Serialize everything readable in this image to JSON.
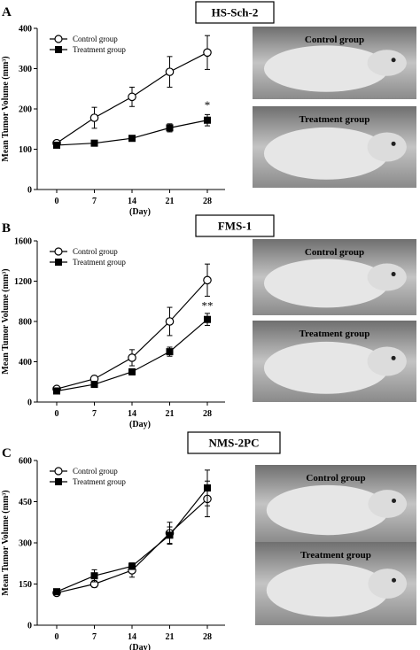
{
  "colors": {
    "control": "#ffffff",
    "treatment": "#000000",
    "axis": "#000000"
  },
  "chart_data": [
    {
      "type": "line",
      "panel_letter": "A",
      "title": "HS-Sch-2",
      "xlabel": "(Day)",
      "ylabel": "Mean Tumor Volume (mm³)",
      "x": [
        0,
        7,
        14,
        21,
        28
      ],
      "x_ticks": [
        "0",
        "7",
        "14",
        "21",
        "28"
      ],
      "y_ticks": [
        "0",
        "100",
        "200",
        "300",
        "400"
      ],
      "ylim": [
        0,
        400
      ],
      "series": [
        {
          "name": "Control group",
          "marker": "open-circle",
          "values": [
            115,
            178,
            230,
            292,
            340
          ],
          "errors": [
            6,
            26,
            24,
            38,
            42
          ]
        },
        {
          "name": "Treatment group",
          "marker": "filled-square",
          "values": [
            110,
            115,
            127,
            153,
            172
          ],
          "errors": [
            5,
            6,
            7,
            10,
            14
          ]
        }
      ],
      "annotations": [
        {
          "text": "*",
          "x": 28,
          "y": 200
        }
      ],
      "photo_labels": [
        "Control group",
        "Treatment group"
      ]
    },
    {
      "type": "line",
      "panel_letter": "B",
      "title": "FMS-1",
      "xlabel": "(Day)",
      "ylabel": "Mean Tumor Volume (mm³)",
      "x": [
        0,
        7,
        14,
        21,
        28
      ],
      "x_ticks": [
        "0",
        "7",
        "14",
        "21",
        "28"
      ],
      "y_ticks": [
        "0",
        "400",
        "800",
        "1200",
        "1600"
      ],
      "ylim": [
        0,
        1600
      ],
      "series": [
        {
          "name": "Control group",
          "marker": "open-circle",
          "values": [
            130,
            230,
            440,
            800,
            1210
          ],
          "errors": [
            20,
            30,
            80,
            140,
            160
          ]
        },
        {
          "name": "Treatment group",
          "marker": "filled-square",
          "values": [
            110,
            175,
            300,
            500,
            820
          ],
          "errors": [
            15,
            20,
            30,
            45,
            60
          ]
        }
      ],
      "annotations": [
        {
          "text": "**",
          "x": 28,
          "y": 920
        }
      ],
      "photo_labels": [
        "Control group",
        "Treatment group"
      ]
    },
    {
      "type": "line",
      "panel_letter": "C",
      "title": "NMS-2PC",
      "xlabel": "(Day)",
      "ylabel": "Mean Tumor Volume (mm³)",
      "x": [
        0,
        7,
        14,
        21,
        28
      ],
      "x_ticks": [
        "0",
        "7",
        "14",
        "21",
        "28"
      ],
      "y_ticks": [
        "0",
        "150",
        "300",
        "450",
        "600"
      ],
      "ylim": [
        0,
        600
      ],
      "series": [
        {
          "name": "Control group",
          "marker": "open-circle",
          "values": [
            118,
            150,
            200,
            335,
            460
          ],
          "errors": [
            8,
            12,
            25,
            40,
            65
          ]
        },
        {
          "name": "Treatment group",
          "marker": "filled-square",
          "values": [
            122,
            180,
            215,
            328,
            500
          ],
          "errors": [
            8,
            22,
            12,
            30,
            65
          ]
        }
      ],
      "annotations": [],
      "photo_labels": [
        "Control group",
        "Treatment group"
      ]
    }
  ]
}
